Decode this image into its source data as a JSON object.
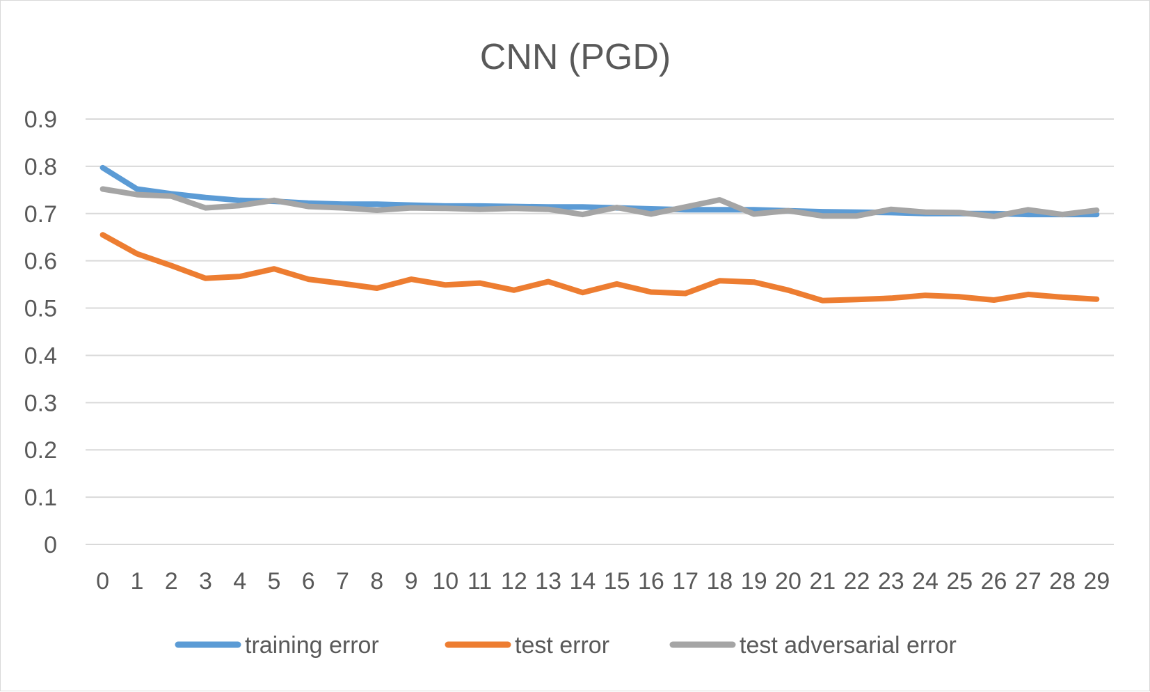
{
  "chart_data": {
    "type": "line",
    "title": "CNN (PGD)",
    "xlabel": "",
    "ylabel": "",
    "categories": [
      "0",
      "1",
      "2",
      "3",
      "4",
      "5",
      "6",
      "7",
      "8",
      "9",
      "10",
      "11",
      "12",
      "13",
      "14",
      "15",
      "16",
      "17",
      "18",
      "19",
      "20",
      "21",
      "22",
      "23",
      "24",
      "25",
      "26",
      "27",
      "28",
      "29"
    ],
    "ylim": [
      0,
      0.9
    ],
    "yticks": [
      "0",
      "0.1",
      "0.2",
      "0.3",
      "0.4",
      "0.5",
      "0.6",
      "0.7",
      "0.8",
      "0.9"
    ],
    "grid": true,
    "legend_position": "bottom",
    "series": [
      {
        "name": "training error",
        "color": "#5b9bd5",
        "values": [
          0.797,
          0.752,
          0.742,
          0.734,
          0.728,
          0.726,
          0.722,
          0.72,
          0.72,
          0.718,
          0.716,
          0.716,
          0.715,
          0.714,
          0.714,
          0.712,
          0.71,
          0.708,
          0.708,
          0.708,
          0.706,
          0.704,
          0.703,
          0.702,
          0.7,
          0.7,
          0.7,
          0.698,
          0.698,
          0.698
        ]
      },
      {
        "name": "test error",
        "color": "#ed7d31",
        "values": [
          0.655,
          0.615,
          0.59,
          0.563,
          0.567,
          0.583,
          0.561,
          0.552,
          0.542,
          0.561,
          0.549,
          0.553,
          0.538,
          0.556,
          0.533,
          0.551,
          0.534,
          0.531,
          0.558,
          0.555,
          0.538,
          0.516,
          0.518,
          0.521,
          0.527,
          0.524,
          0.517,
          0.529,
          0.523,
          0.519
        ]
      },
      {
        "name": "test adversarial error",
        "color": "#a5a5a5",
        "values": [
          0.752,
          0.74,
          0.737,
          0.712,
          0.717,
          0.728,
          0.715,
          0.712,
          0.707,
          0.712,
          0.711,
          0.709,
          0.711,
          0.709,
          0.698,
          0.713,
          0.699,
          0.714,
          0.729,
          0.699,
          0.706,
          0.695,
          0.695,
          0.709,
          0.703,
          0.702,
          0.694,
          0.708,
          0.698,
          0.707
        ]
      }
    ]
  }
}
